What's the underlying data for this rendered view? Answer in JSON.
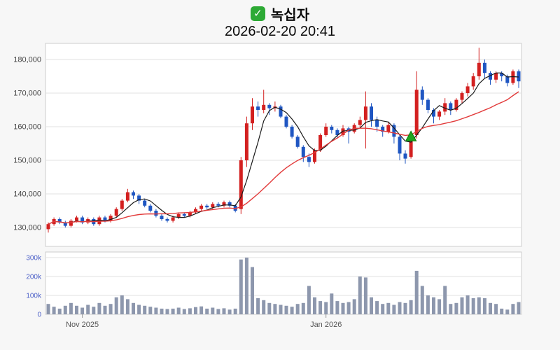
{
  "header": {
    "symbol": "녹십자",
    "datetime": "2026-02-20 20:41",
    "check_icon": "checkmark",
    "check_icon_glyph": "✓"
  },
  "chart_data": {
    "type": "candlestick",
    "title": "녹십자",
    "subtitle": "2026-02-20 20:41",
    "legend_position": "none",
    "grid": true,
    "y_axis": {
      "values": [
        130000,
        140000,
        150000,
        160000,
        170000,
        180000
      ],
      "labels": [
        "130,000",
        "140,000",
        "150,000",
        "160,000",
        "170,000",
        "180,000"
      ],
      "range": [
        125500,
        186000
      ]
    },
    "volume_axis": {
      "values": [
        300000,
        200000,
        100000,
        0
      ],
      "ticks": [
        "300k",
        "200k",
        "100k",
        "0"
      ],
      "range": [
        0,
        310000
      ]
    },
    "x_axis": {
      "labels": [
        {
          "text": "Nov 2025",
          "index": 6
        },
        {
          "text": "Jan 2026",
          "index": 49
        }
      ]
    },
    "ma_fast_period": 5,
    "ma_slow_period": 20,
    "marker": {
      "shape": "triangle-up",
      "index": 64,
      "price": 157000
    },
    "colors": {
      "up": "#d32020",
      "down": "#1f56c2",
      "ma_fast": "#1a1a1a",
      "ma_slow": "#e23b3b",
      "volume": "#8d97ad",
      "grid": "#e2e2e2",
      "marker": "#1fa51f",
      "plot_border": "#cccccc",
      "plot_bg": "#ffffff"
    },
    "candles_format": [
      "open",
      "high",
      "low",
      "close",
      "volume"
    ],
    "candles": [
      [
        129500,
        131500,
        128500,
        131000,
        55000
      ],
      [
        131000,
        133000,
        130500,
        132500,
        40000
      ],
      [
        132500,
        133000,
        131000,
        131500,
        30000
      ],
      [
        131500,
        132000,
        130000,
        130500,
        45000
      ],
      [
        130500,
        132500,
        130000,
        132000,
        60000
      ],
      [
        132000,
        133500,
        131500,
        133000,
        45000
      ],
      [
        133000,
        133500,
        131000,
        131500,
        35000
      ],
      [
        131500,
        133000,
        131000,
        132500,
        50000
      ],
      [
        132500,
        133000,
        130500,
        131000,
        40000
      ],
      [
        131000,
        133500,
        130500,
        133000,
        60000
      ],
      [
        133000,
        133500,
        131500,
        132000,
        45000
      ],
      [
        132000,
        134000,
        131500,
        133500,
        55000
      ],
      [
        133500,
        136000,
        133000,
        135500,
        90000
      ],
      [
        135500,
        138500,
        135000,
        138000,
        100000
      ],
      [
        138000,
        141500,
        137500,
        140500,
        80000
      ],
      [
        140500,
        141000,
        138500,
        139500,
        60000
      ],
      [
        139500,
        140000,
        137000,
        138000,
        50000
      ],
      [
        138000,
        138500,
        136000,
        136500,
        45000
      ],
      [
        136500,
        137000,
        134500,
        135000,
        40000
      ],
      [
        135000,
        135500,
        133000,
        133500,
        35000
      ],
      [
        133500,
        134000,
        132000,
        132500,
        30000
      ],
      [
        132500,
        133000,
        131500,
        132000,
        28000
      ],
      [
        132000,
        133500,
        131500,
        133000,
        30000
      ],
      [
        133000,
        134500,
        132500,
        134000,
        35000
      ],
      [
        134000,
        134500,
        133000,
        133500,
        28000
      ],
      [
        133500,
        135000,
        133000,
        134500,
        32000
      ],
      [
        134500,
        136000,
        134000,
        135500,
        38000
      ],
      [
        135500,
        137000,
        135000,
        136500,
        42000
      ],
      [
        136500,
        137000,
        135500,
        136000,
        30000
      ],
      [
        136000,
        137500,
        135500,
        137000,
        35000
      ],
      [
        137000,
        137500,
        136000,
        136500,
        28000
      ],
      [
        136500,
        138000,
        136000,
        137500,
        32000
      ],
      [
        137500,
        138000,
        136000,
        136500,
        25000
      ],
      [
        136500,
        137000,
        134500,
        135000,
        30000
      ],
      [
        135500,
        151000,
        134000,
        150000,
        290000
      ],
      [
        150000,
        163000,
        148000,
        161000,
        300000
      ],
      [
        161000,
        168500,
        159000,
        166000,
        250000
      ],
      [
        166000,
        167500,
        163000,
        165000,
        85000
      ],
      [
        165000,
        171000,
        164000,
        166500,
        75000
      ],
      [
        166500,
        167000,
        163500,
        165500,
        60000
      ],
      [
        165500,
        167500,
        164500,
        166000,
        55000
      ],
      [
        166000,
        166500,
        162500,
        163000,
        50000
      ],
      [
        163000,
        163500,
        159500,
        160000,
        45000
      ],
      [
        160000,
        160500,
        156500,
        157000,
        40000
      ],
      [
        157000,
        157500,
        153500,
        154000,
        55000
      ],
      [
        154000,
        154500,
        149500,
        151000,
        60000
      ],
      [
        151000,
        152000,
        148000,
        149500,
        150000
      ],
      [
        149500,
        153500,
        149000,
        153000,
        90000
      ],
      [
        153000,
        158000,
        152500,
        157500,
        70000
      ],
      [
        157500,
        161000,
        157000,
        160000,
        65000
      ],
      [
        160000,
        160500,
        158000,
        159000,
        110000
      ],
      [
        159000,
        159500,
        156500,
        157500,
        70000
      ],
      [
        157500,
        160500,
        157000,
        159500,
        60000
      ],
      [
        159500,
        160000,
        155000,
        158500,
        65000
      ],
      [
        158500,
        161000,
        158000,
        160500,
        80000
      ],
      [
        160500,
        163000,
        159500,
        162000,
        200000
      ],
      [
        162000,
        170500,
        153500,
        166000,
        195000
      ],
      [
        166000,
        167000,
        160000,
        162000,
        90000
      ],
      [
        162000,
        163000,
        158500,
        160000,
        70000
      ],
      [
        160000,
        160500,
        157000,
        158500,
        55000
      ],
      [
        158500,
        161500,
        158000,
        160500,
        60000
      ],
      [
        160500,
        161000,
        155000,
        157000,
        50000
      ],
      [
        157000,
        157500,
        150000,
        152000,
        65000
      ],
      [
        152000,
        153000,
        149000,
        150500,
        60000
      ],
      [
        151000,
        158000,
        150500,
        157000,
        75000
      ],
      [
        157500,
        176500,
        156500,
        171000,
        230000
      ],
      [
        171000,
        172000,
        166500,
        168000,
        150000
      ],
      [
        168000,
        168500,
        164000,
        165000,
        100000
      ],
      [
        165000,
        165500,
        161000,
        163000,
        90000
      ],
      [
        163000,
        165000,
        162000,
        164500,
        80000
      ],
      [
        164500,
        168500,
        163500,
        167000,
        150000
      ],
      [
        167000,
        167500,
        163500,
        165000,
        55000
      ],
      [
        165000,
        168500,
        164500,
        168000,
        60000
      ],
      [
        168000,
        170500,
        167000,
        170000,
        90000
      ],
      [
        170000,
        173000,
        169000,
        172000,
        100000
      ],
      [
        172000,
        176000,
        171000,
        175000,
        85000
      ],
      [
        175000,
        183500,
        174000,
        179000,
        90000
      ],
      [
        179000,
        180000,
        174500,
        176000,
        85000
      ],
      [
        176000,
        176500,
        172500,
        174000,
        60000
      ],
      [
        174000,
        176500,
        173000,
        176000,
        55000
      ],
      [
        176000,
        176500,
        173500,
        175000,
        30000
      ],
      [
        175000,
        175500,
        172000,
        173000,
        25000
      ],
      [
        173000,
        177000,
        172500,
        176500,
        55000
      ],
      [
        176500,
        177000,
        171500,
        173500,
        65000
      ]
    ]
  }
}
